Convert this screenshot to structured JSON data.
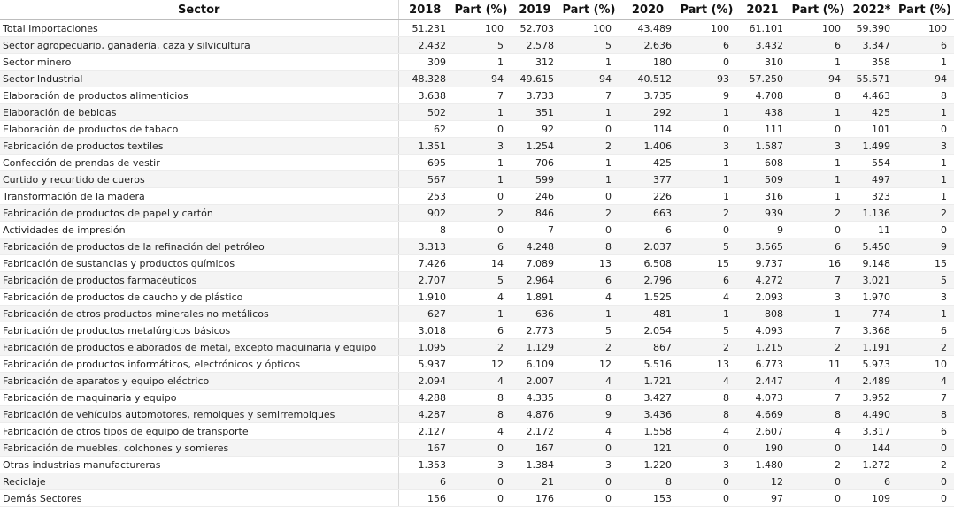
{
  "headers": [
    "Sector",
    "2018",
    "Part (%)",
    "2019",
    "Part (%)",
    "2020",
    "Part (%)",
    "2021",
    "Part (%)",
    "2022*",
    "Part (%)"
  ],
  "rows": [
    [
      "Total Importaciones",
      "51.231",
      "100",
      "52.703",
      "100",
      "43.489",
      "100",
      "61.101",
      "100",
      "59.390",
      "100"
    ],
    [
      "Sector agropecuario, ganadería, caza y silvicultura",
      "2.432",
      "5",
      "2.578",
      "5",
      "2.636",
      "6",
      "3.432",
      "6",
      "3.347",
      "6"
    ],
    [
      "Sector minero",
      "309",
      "1",
      "312",
      "1",
      "180",
      "0",
      "310",
      "1",
      "358",
      "1"
    ],
    [
      "Sector Industrial",
      "48.328",
      "94",
      "49.615",
      "94",
      "40.512",
      "93",
      "57.250",
      "94",
      "55.571",
      "94"
    ],
    [
      "Elaboración de productos alimenticios",
      "3.638",
      "7",
      "3.733",
      "7",
      "3.735",
      "9",
      "4.708",
      "8",
      "4.463",
      "8"
    ],
    [
      "Elaboración de bebidas",
      "502",
      "1",
      "351",
      "1",
      "292",
      "1",
      "438",
      "1",
      "425",
      "1"
    ],
    [
      "Elaboración de productos de tabaco",
      "62",
      "0",
      "92",
      "0",
      "114",
      "0",
      "111",
      "0",
      "101",
      "0"
    ],
    [
      "Fabricación de productos textiles",
      "1.351",
      "3",
      "1.254",
      "2",
      "1.406",
      "3",
      "1.587",
      "3",
      "1.499",
      "3"
    ],
    [
      "Confección de prendas de vestir",
      "695",
      "1",
      "706",
      "1",
      "425",
      "1",
      "608",
      "1",
      "554",
      "1"
    ],
    [
      "Curtido y recurtido de cueros",
      "567",
      "1",
      "599",
      "1",
      "377",
      "1",
      "509",
      "1",
      "497",
      "1"
    ],
    [
      "Transformación de la madera",
      "253",
      "0",
      "246",
      "0",
      "226",
      "1",
      "316",
      "1",
      "323",
      "1"
    ],
    [
      "Fabricación de productos de papel y cartón",
      "902",
      "2",
      "846",
      "2",
      "663",
      "2",
      "939",
      "2",
      "1.136",
      "2"
    ],
    [
      "Actividades de impresión",
      "8",
      "0",
      "7",
      "0",
      "6",
      "0",
      "9",
      "0",
      "11",
      "0"
    ],
    [
      "Fabricación de productos de la refinación del petróleo",
      "3.313",
      "6",
      "4.248",
      "8",
      "2.037",
      "5",
      "3.565",
      "6",
      "5.450",
      "9"
    ],
    [
      "Fabricación de sustancias y productos químicos",
      "7.426",
      "14",
      "7.089",
      "13",
      "6.508",
      "15",
      "9.737",
      "16",
      "9.148",
      "15"
    ],
    [
      "Fabricación de productos farmacéuticos",
      "2.707",
      "5",
      "2.964",
      "6",
      "2.796",
      "6",
      "4.272",
      "7",
      "3.021",
      "5"
    ],
    [
      "Fabricación de productos de caucho y de plástico",
      "1.910",
      "4",
      "1.891",
      "4",
      "1.525",
      "4",
      "2.093",
      "3",
      "1.970",
      "3"
    ],
    [
      "Fabricación de otros productos minerales no metálicos",
      "627",
      "1",
      "636",
      "1",
      "481",
      "1",
      "808",
      "1",
      "774",
      "1"
    ],
    [
      "Fabricación de productos metalúrgicos básicos",
      "3.018",
      "6",
      "2.773",
      "5",
      "2.054",
      "5",
      "4.093",
      "7",
      "3.368",
      "6"
    ],
    [
      "Fabricación de productos elaborados de metal, excepto maquinaria y equipo",
      "1.095",
      "2",
      "1.129",
      "2",
      "867",
      "2",
      "1.215",
      "2",
      "1.191",
      "2"
    ],
    [
      "Fabricación de productos informáticos, electrónicos y ópticos",
      "5.937",
      "12",
      "6.109",
      "12",
      "5.516",
      "13",
      "6.773",
      "11",
      "5.973",
      "10"
    ],
    [
      "Fabricación de aparatos y equipo eléctrico",
      "2.094",
      "4",
      "2.007",
      "4",
      "1.721",
      "4",
      "2.447",
      "4",
      "2.489",
      "4"
    ],
    [
      "Fabricación de maquinaria y equipo",
      "4.288",
      "8",
      "4.335",
      "8",
      "3.427",
      "8",
      "4.073",
      "7",
      "3.952",
      "7"
    ],
    [
      "Fabricación de vehículos automotores, remolques y semirremolques",
      "4.287",
      "8",
      "4.876",
      "9",
      "3.436",
      "8",
      "4.669",
      "8",
      "4.490",
      "8"
    ],
    [
      "Fabricación de otros tipos de equipo de transporte",
      "2.127",
      "4",
      "2.172",
      "4",
      "1.558",
      "4",
      "2.607",
      "4",
      "3.317",
      "6"
    ],
    [
      "Fabricación de muebles, colchones y somieres",
      "167",
      "0",
      "167",
      "0",
      "121",
      "0",
      "190",
      "0",
      "144",
      "0"
    ],
    [
      "Otras industrias manufactureras",
      "1.353",
      "3",
      "1.384",
      "3",
      "1.220",
      "3",
      "1.480",
      "2",
      "1.272",
      "2"
    ],
    [
      "Reciclaje",
      "6",
      "0",
      "21",
      "0",
      "8",
      "0",
      "12",
      "0",
      "6",
      "0"
    ],
    [
      "Demás Sectores",
      "156",
      "0",
      "176",
      "0",
      "153",
      "0",
      "97",
      "0",
      "109",
      "0"
    ]
  ]
}
